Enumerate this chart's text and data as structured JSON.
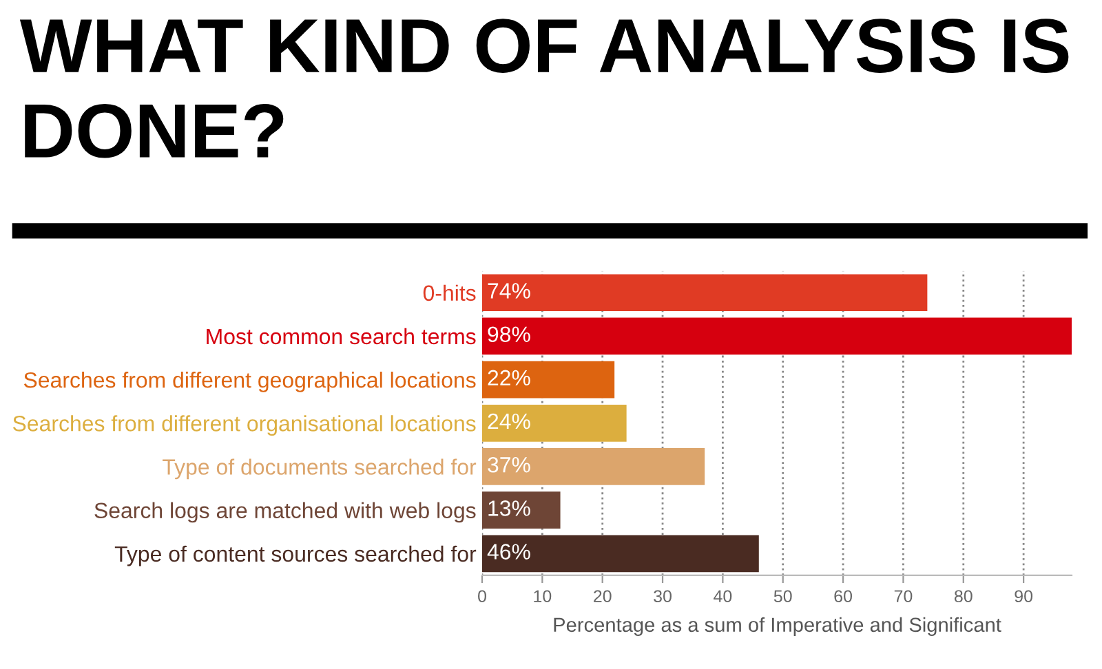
{
  "chart_data": {
    "type": "bar",
    "orientation": "horizontal",
    "title": "WHAT KIND OF ANALYSIS IS DONE?",
    "xlabel": "Percentage as a sum of Imperative and Significant",
    "categories": [
      "0-hits",
      "Most common search terms",
      "Searches from different geographical locations",
      "Searches from different organisational locations",
      "Type of documents searched for",
      "Search logs are matched with web logs",
      "Type of content sources searched for"
    ],
    "values": [
      74,
      98,
      22,
      24,
      37,
      13,
      46
    ],
    "colors": [
      "#e03b24",
      "#d6000f",
      "#dd6410",
      "#dcae3e",
      "#dca56c",
      "#6e4536",
      "#4a2b22"
    ],
    "value_labels": [
      "74%",
      "98%",
      "22%",
      "24%",
      "37%",
      "13%",
      "46%"
    ],
    "xlim": [
      0,
      98
    ],
    "xticks": [
      0,
      10,
      20,
      30,
      40,
      50,
      60,
      70,
      80,
      90
    ],
    "grid": "x",
    "legend": false
  }
}
